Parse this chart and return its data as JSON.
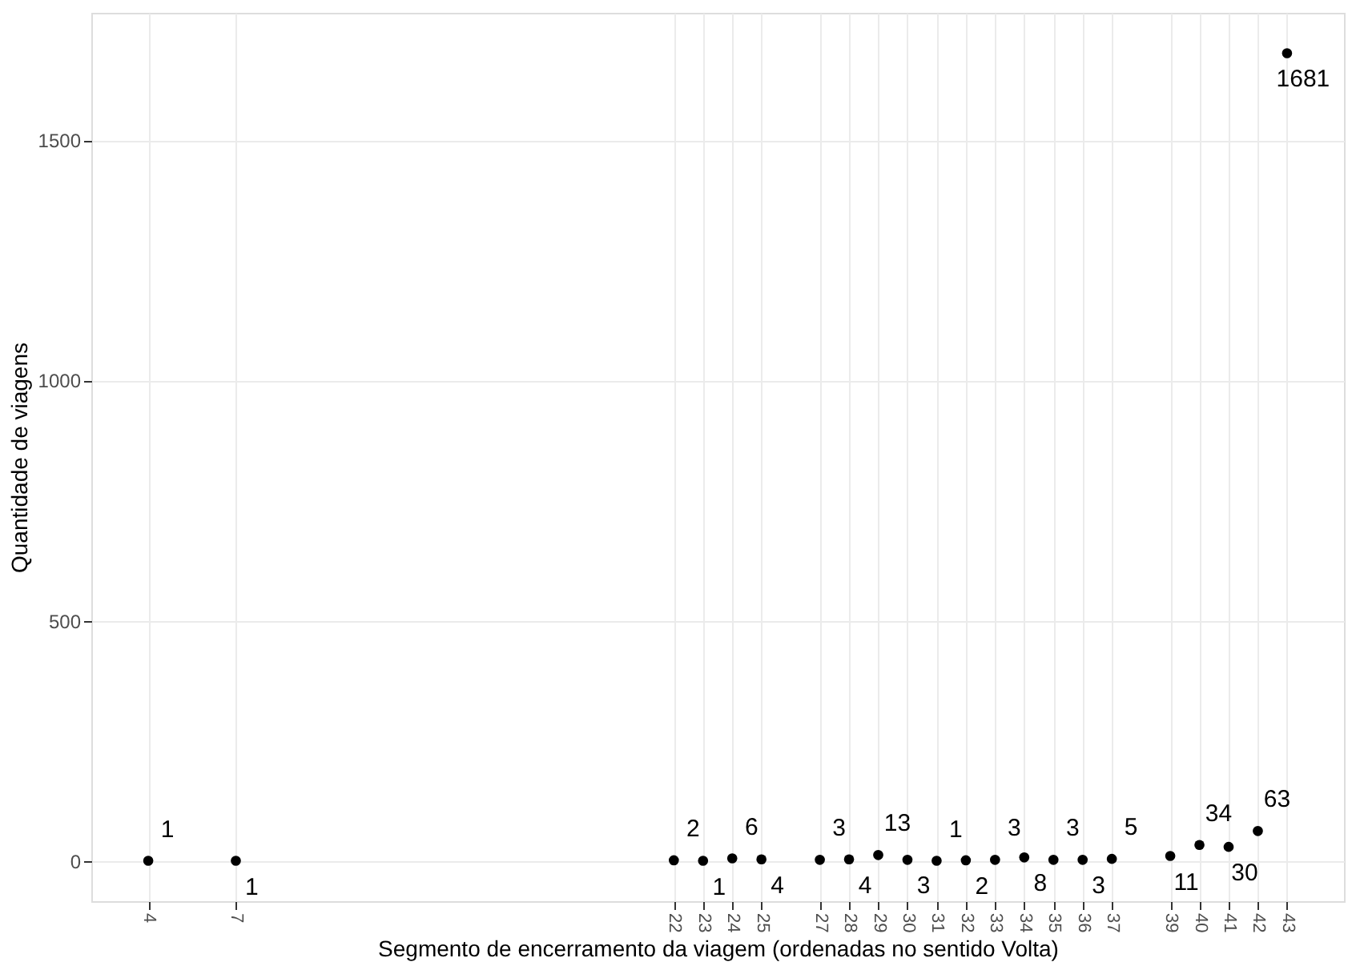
{
  "chart_data": {
    "type": "scatter",
    "xlabel": "Segmento de encerramento da viagem (ordenadas no sentido Volta)",
    "ylabel": "Quantidade de viagens",
    "x": [
      4,
      7,
      22,
      23,
      24,
      25,
      27,
      28,
      29,
      30,
      31,
      32,
      33,
      34,
      35,
      36,
      37,
      39,
      40,
      41,
      42,
      43
    ],
    "values": [
      1,
      1,
      2,
      1,
      6,
      4,
      3,
      4,
      13,
      3,
      1,
      2,
      3,
      8,
      3,
      3,
      5,
      11,
      34,
      30,
      63,
      1681
    ],
    "color": "#000000",
    "marker": "circle",
    "data_labels": true,
    "grid": true,
    "xlim": [
      2.05,
      44.95
    ],
    "xticks": [
      4,
      7,
      22,
      23,
      24,
      25,
      27,
      28,
      29,
      30,
      31,
      32,
      33,
      34,
      35,
      36,
      37,
      39,
      40,
      41,
      42,
      43
    ],
    "ylim": [
      -83,
      1765
    ],
    "yticks": [
      0,
      500,
      {
        "value": 1000,
        "label": "1000"
      },
      {
        "value": 1500,
        "label": "1500"
      }
    ]
  }
}
